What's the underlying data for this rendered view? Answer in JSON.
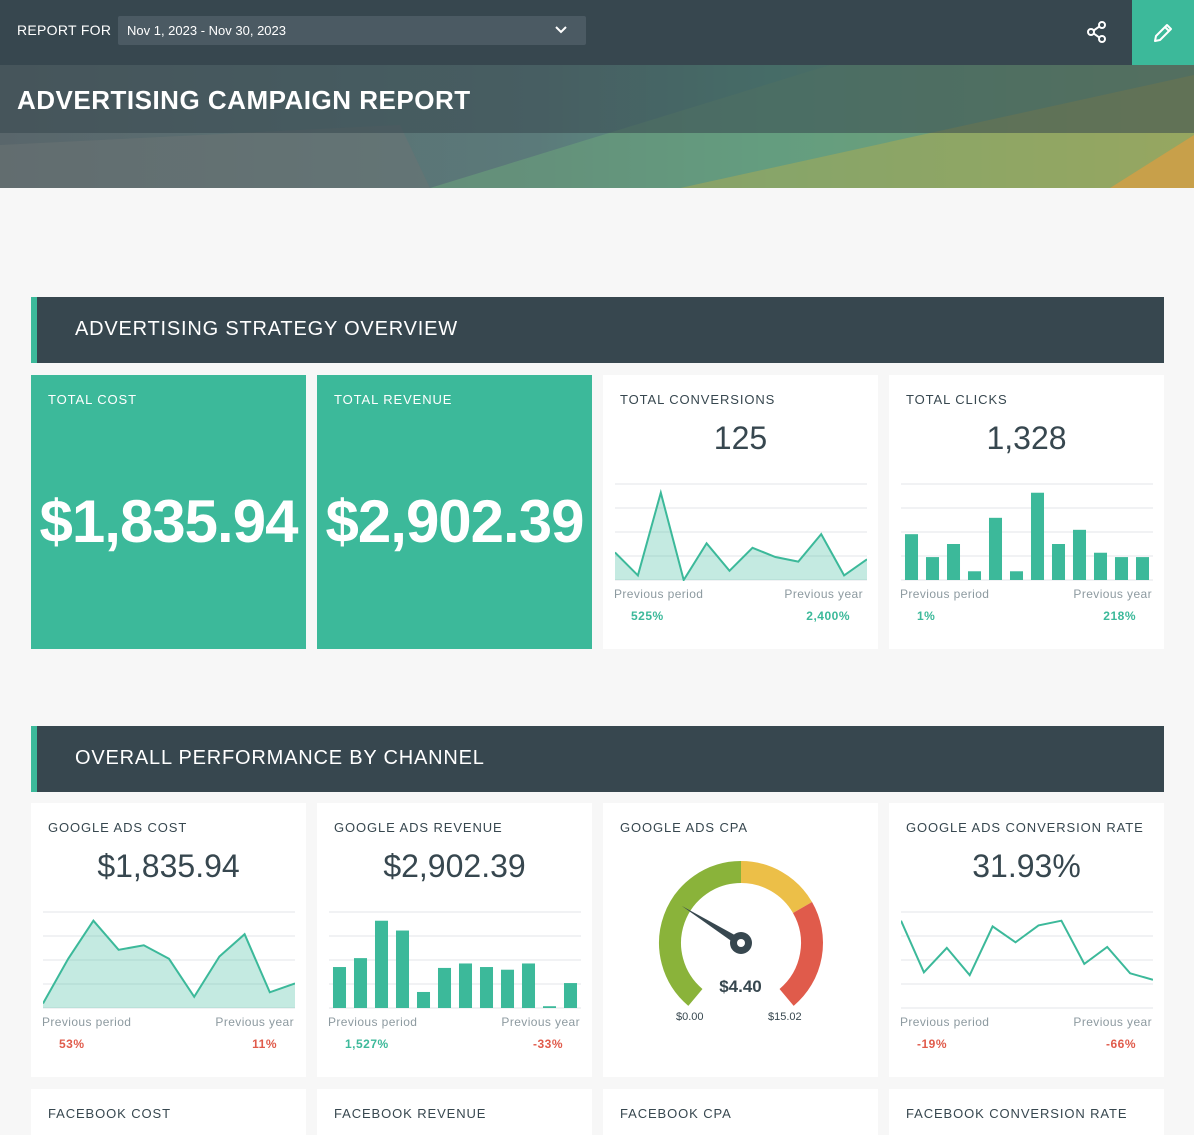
{
  "topbar": {
    "report_for_label": "REPORT FOR",
    "date_range": "Nov 1, 2023 - Nov 30, 2023",
    "share_icon": "share-icon",
    "edit_icon": "pencil-icon"
  },
  "banner": {
    "title": "ADVERTISING CAMPAIGN REPORT"
  },
  "sections": {
    "overview": "ADVERTISING STRATEGY OVERVIEW",
    "by_channel": "OVERALL PERFORMANCE BY CHANNEL"
  },
  "colors": {
    "accent": "#3cb99a",
    "dark": "#37474f",
    "negative": "#e05b4b",
    "gauge_green": "#8ab33a",
    "gauge_yellow": "#ecbf48",
    "gauge_red": "#e05b4b"
  },
  "cards": {
    "total_cost": {
      "label": "TOTAL COST",
      "value": "$1,835.94"
    },
    "total_revenue": {
      "label": "TOTAL REVENUE",
      "value": "$2,902.39"
    },
    "total_conversions": {
      "label": "TOTAL CONVERSIONS",
      "value": "125",
      "prev_period_label": "Previous period",
      "prev_period": "525%",
      "prev_year_label": "Previous year",
      "prev_year": "2,400%",
      "chart_type": "area",
      "series": [
        12,
        2,
        38,
        0,
        16,
        4,
        14,
        10,
        8,
        20,
        2,
        9
      ]
    },
    "total_clicks": {
      "label": "TOTAL CLICKS",
      "value": "1,328",
      "prev_period_label": "Previous period",
      "prev_period": "1%",
      "prev_year_label": "Previous year",
      "prev_year": "218%",
      "chart_type": "bar",
      "series": [
        42,
        21,
        33,
        8,
        57,
        8,
        80,
        33,
        46,
        25,
        21,
        21
      ]
    },
    "google_ads_cost": {
      "label": "GOOGLE ADS COST",
      "value": "$1,835.94",
      "prev_period_label": "Previous period",
      "prev_period": "53%",
      "prev_year_label": "Previous year",
      "prev_year": "11%",
      "chart_type": "area",
      "series": [
        4,
        44,
        78,
        52,
        56,
        44,
        10,
        46,
        66,
        14,
        22
      ]
    },
    "google_ads_revenue": {
      "label": "GOOGLE ADS REVENUE",
      "value": "$2,902.39",
      "prev_period_label": "Previous period",
      "prev_period": "1,527%",
      "prev_year_label": "Previous year",
      "prev_year": "-33%",
      "chart_type": "bar",
      "series": [
        46,
        56,
        98,
        87,
        18,
        45,
        50,
        46,
        43,
        50,
        2,
        28
      ]
    },
    "google_ads_cpa": {
      "label": "GOOGLE ADS CPA",
      "value": "$4.40",
      "min": "$0.00",
      "max": "$15.02",
      "fraction": 0.293
    },
    "google_ads_conversion_rate": {
      "label": "GOOGLE ADS CONVERSION RATE",
      "value": "31.93%",
      "prev_period_label": "Previous period",
      "prev_period": "-19%",
      "prev_year_label": "Previous year",
      "prev_year": "-66%",
      "chart_type": "line",
      "series": [
        93,
        38,
        64,
        35,
        87,
        70,
        88,
        93,
        47,
        65,
        37,
        30
      ]
    },
    "facebook_cost": {
      "label": "FACEBOOK COST"
    },
    "facebook_revenue": {
      "label": "FACEBOOK REVENUE"
    },
    "facebook_cpa": {
      "label": "FACEBOOK CPA"
    },
    "facebook_conversion_rate": {
      "label": "FACEBOOK CONVERSION RATE"
    }
  }
}
